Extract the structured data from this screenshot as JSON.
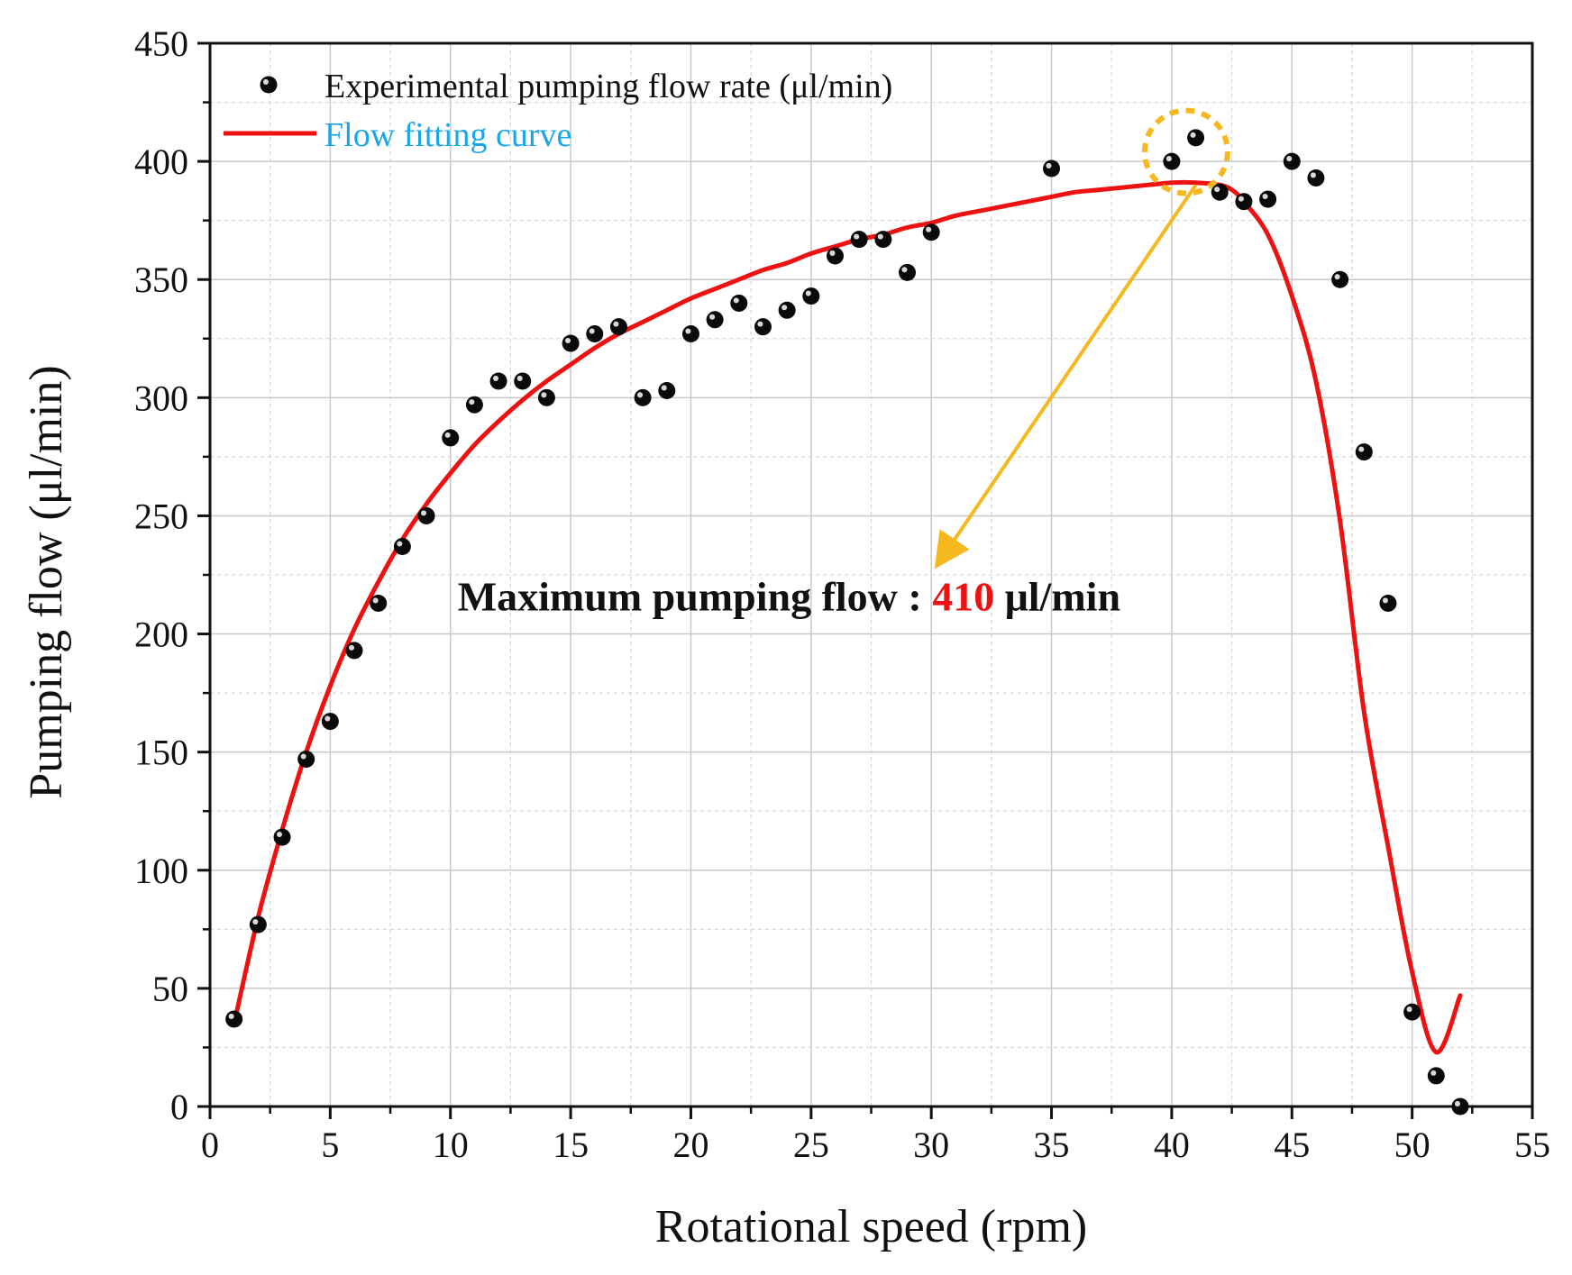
{
  "chart_data": {
    "type": "scatter",
    "title": "",
    "xlabel": "Rotational speed (rpm)",
    "ylabel": "Pumping flow (μl/min)",
    "xlim": [
      0,
      55
    ],
    "ylim": [
      0,
      450
    ],
    "xticks": [
      0,
      5,
      10,
      15,
      20,
      25,
      30,
      35,
      40,
      45,
      50,
      55
    ],
    "yticks": [
      0,
      50,
      100,
      150,
      200,
      250,
      300,
      350,
      400,
      450
    ],
    "grid": true,
    "legend_position": "top-left",
    "series": [
      {
        "name": "Experimental pumping flow rate (μl/min)",
        "kind": "scatter",
        "color": "#000000",
        "x": [
          1,
          2,
          3,
          4,
          5,
          6,
          7,
          8,
          9,
          10,
          11,
          12,
          13,
          14,
          15,
          16,
          17,
          18,
          19,
          20,
          21,
          22,
          23,
          24,
          25,
          26,
          27,
          28,
          29,
          30,
          35,
          40,
          41,
          42,
          43,
          44,
          45,
          46,
          47,
          48,
          49,
          50,
          51,
          52
        ],
        "y": [
          37,
          77,
          114,
          147,
          163,
          193,
          213,
          237,
          250,
          283,
          297,
          307,
          307,
          300,
          323,
          327,
          330,
          300,
          303,
          327,
          333,
          340,
          330,
          337,
          343,
          360,
          367,
          367,
          353,
          370,
          397,
          400,
          410,
          387,
          383,
          384,
          400,
          393,
          350,
          277,
          213,
          40,
          13,
          0
        ]
      },
      {
        "name": "Flow fitting curve",
        "kind": "line",
        "color": "#ee1111",
        "legend_text_color": "#1aa7e8",
        "x": [
          1,
          2,
          3,
          4,
          5,
          6,
          7,
          8,
          9,
          10,
          11,
          12,
          13,
          14,
          15,
          16,
          17,
          18,
          19,
          20,
          21,
          22,
          23,
          24,
          25,
          26,
          27,
          28,
          29,
          30,
          31,
          32,
          33,
          34,
          35,
          36,
          37,
          38,
          39,
          40,
          41,
          42,
          42.5,
          43,
          44,
          45,
          46,
          47,
          48,
          49,
          50,
          51,
          52
        ],
        "y": [
          35,
          80,
          117,
          150,
          178,
          202,
          222,
          240,
          255,
          268,
          280,
          290,
          299,
          307,
          314,
          321,
          327,
          332,
          337,
          342,
          346,
          350,
          354,
          357,
          361,
          364,
          367,
          369,
          372,
          374,
          377,
          379,
          381,
          383,
          385,
          387,
          388,
          389,
          390,
          391,
          391,
          390,
          388,
          383,
          369,
          343,
          307,
          248,
          167,
          110,
          57,
          23,
          47
        ]
      }
    ],
    "annotations": [
      {
        "text_prefix": "Maximum pumping flow : ",
        "value": "410",
        "value_color": "#ee1111",
        "text_suffix": " μl/min",
        "arrow_from": [
          41,
          390
        ],
        "arrow_to": [
          30.3,
          230
        ],
        "text_anchor_point": [
          10.3,
          210
        ],
        "highlight_center": [
          40.6,
          404
        ],
        "highlight_color": "#f5b81e"
      }
    ]
  }
}
